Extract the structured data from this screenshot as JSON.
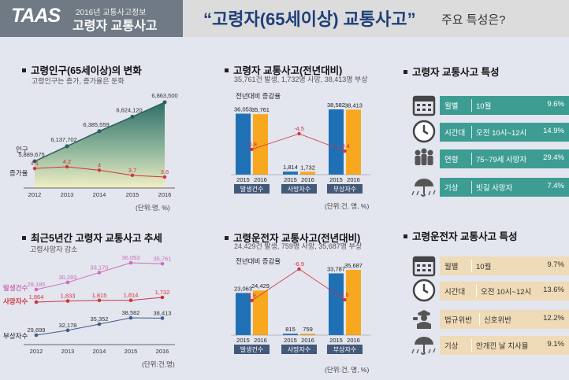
{
  "header": {
    "logo": "TAAS",
    "year_label": "2016년 교통사고정보",
    "subtitle": "고령자 교통사고",
    "main_title": "“고령자(65세이상) 교통사고”",
    "main_suffix": "주요 특성은?"
  },
  "sections": {
    "elderly_pop": {
      "title": "고령인구(65세이상)의 변화",
      "sub": "고령인구는 증가, 증가율은 둔화",
      "unit": "(단위:명, %)"
    },
    "elderly_accidents": {
      "title": "고령자 교통사고(전년대비)",
      "sub": "35,761건 발생, 1,732명 사망, 38,413명 부상",
      "unit": "(단위:건, 명, %)"
    },
    "elderly_features": {
      "title": "고령자 교통사고 특성"
    },
    "trend": {
      "title": "최근5년간 고령자 교통사고 추세",
      "sub": "고령사망자 감소",
      "unit": "(단위:건,명)"
    },
    "driver_accidents": {
      "title": "고령운전자 교통사고(전년대비)",
      "sub": "24,429건 발생, 759명 사망, 35,687명 부상",
      "unit": "(단위:건, 명, %)"
    },
    "driver_features": {
      "title": "고령운전자 교통사고 특성"
    }
  },
  "features_elderly": [
    {
      "icon": "calendar-icon",
      "category": "월별",
      "value": "10월",
      "percent": "9.6%"
    },
    {
      "icon": "clock-icon",
      "category": "시간대",
      "value": "오전 10시~12시",
      "percent": "14.9%"
    },
    {
      "icon": "people-icon",
      "category": "연령",
      "value": "75~79세 사망자",
      "percent": "29.4%"
    },
    {
      "icon": "rain-umbrella-icon",
      "category": "기상",
      "value": "빗길 사망자",
      "percent": "7.4%"
    }
  ],
  "features_driver": [
    {
      "icon": "calendar-icon",
      "category": "월별",
      "value": "10월",
      "percent": "9.7%"
    },
    {
      "icon": "clock-icon",
      "category": "시간대",
      "value": "오전 10시~12시",
      "percent": "13.6%"
    },
    {
      "icon": "police-icon",
      "category": "법규위반",
      "value": "신호위반",
      "percent": "12.2%"
    },
    {
      "icon": "rain-umbrella-icon",
      "category": "기상",
      "value": "안개낀 날 치사율",
      "percent": "9.1%"
    }
  ],
  "colors": {
    "teal": "#3e9d93",
    "beige": "#efdbb7",
    "blue_bar": "#1f70b5",
    "orange_bar": "#f8a81e",
    "red_line": "#d0343a",
    "pink_line": "#cc6fb9",
    "navy_line": "#3f5d8a",
    "area_top": "#3e7a73"
  },
  "chart_data": [
    {
      "type": "area",
      "title": "고령인구(65세이상)의 변화",
      "categories": [
        "2012",
        "2013",
        "2014",
        "2015",
        "2016"
      ],
      "series": [
        {
          "name": "인구",
          "values": [
            5889675,
            6137702,
            6385559,
            6624120,
            6863500
          ],
          "labels": [
            "5,889,675",
            "6,137,702",
            "6,385,559",
            "6,624,120",
            "6,863,500"
          ]
        },
        {
          "name": "증가율",
          "values": [
            4.1,
            4.2,
            4,
            3.7,
            3.6
          ],
          "labels": [
            "4.1",
            "4.2",
            "4",
            "3.7",
            "3.6"
          ]
        }
      ]
    },
    {
      "type": "bar",
      "title": "고령자 교통사고(전년대비)",
      "subtitle": "전년대비 증감율",
      "groups": [
        "발생건수",
        "사망자수",
        "부상자수"
      ],
      "years": [
        "2015",
        "2016"
      ],
      "values": [
        [
          36053,
          35761
        ],
        [
          1814,
          1732
        ],
        [
          38582,
          38413
        ]
      ],
      "value_labels": [
        [
          "36,053",
          "35,761"
        ],
        [
          "1,814",
          "1,732"
        ],
        [
          "38,582",
          "38,413"
        ]
      ],
      "change": [
        -0.8,
        -4.5,
        -0.4
      ],
      "change_labels": [
        "-0.8",
        "-4.5",
        "-0.4"
      ]
    },
    {
      "type": "line",
      "title": "최근5년간 고령자 교통사고 추세",
      "categories": [
        "2012",
        "2013",
        "2014",
        "2015",
        "2016"
      ],
      "series": [
        {
          "name": "발생건수",
          "values": [
            28185,
            30283,
            33170,
            36053,
            35761
          ],
          "labels": [
            "28,185",
            "30,283",
            "33,170",
            "36,053",
            "35,761"
          ]
        },
        {
          "name": "사망자수",
          "values": [
            1864,
            1833,
            1815,
            1814,
            1732
          ],
          "labels": [
            "1,864",
            "1,833",
            "1,815",
            "1,814",
            "1,732"
          ]
        },
        {
          "name": "부상자수",
          "values": [
            29699,
            32178,
            35352,
            38582,
            38413
          ],
          "labels": [
            "29,699",
            "32,178",
            "35,352",
            "38,582",
            "38,413"
          ]
        }
      ]
    },
    {
      "type": "bar",
      "title": "고령운전자 교통사고(전년대비)",
      "subtitle": "전년대비 증감율",
      "groups": [
        "발생건수",
        "사망자수",
        "부상자수"
      ],
      "years": [
        "2015",
        "2016"
      ],
      "values": [
        [
          23063,
          24429
        ],
        [
          815,
          759
        ],
        [
          33787,
          35687
        ]
      ],
      "value_labels": [
        [
          "23,063",
          "24,429"
        ],
        [
          "815",
          "759"
        ],
        [
          "33,787",
          "35,687"
        ]
      ],
      "change": [
        5.9,
        -6.9,
        5.6
      ],
      "change_labels": [
        "5.9",
        "-6.9",
        "5.6"
      ]
    }
  ]
}
